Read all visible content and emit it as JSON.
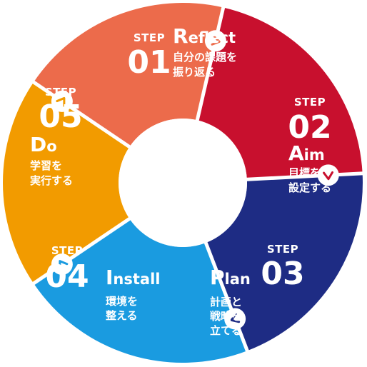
{
  "diagram": {
    "step_word": "STEP",
    "center_color": "#ffffff",
    "arrow_color": "#ffffff",
    "steps": [
      {
        "number": "01",
        "initial": "R",
        "word_rest": "eflect",
        "desc": [
          "自分の課題を",
          "振り返る"
        ],
        "color": "#F29B00",
        "arrow_color": "#F29B00"
      },
      {
        "number": "02",
        "initial": "A",
        "word_rest": "im",
        "desc": [
          "目標を",
          "設定する"
        ],
        "color": "#EC6B4B",
        "arrow_color": "#EC6B4B"
      },
      {
        "number": "03",
        "initial": "P",
        "word_rest": "lan",
        "desc": [
          "計画と",
          "戦略を",
          "立てる"
        ],
        "color": "#C8102E",
        "arrow_color": "#C8102E"
      },
      {
        "number": "04",
        "initial": "I",
        "word_rest": "nstall",
        "desc": [
          "環境を",
          "整える"
        ],
        "color": "#1E2C84",
        "arrow_color": "#1E2C84"
      },
      {
        "number": "05",
        "initial": "D",
        "word_rest": "o",
        "desc": [
          "学習を",
          "実行する"
        ],
        "color": "#1A9BE0",
        "arrow_color": "#1A9BE0"
      }
    ]
  }
}
